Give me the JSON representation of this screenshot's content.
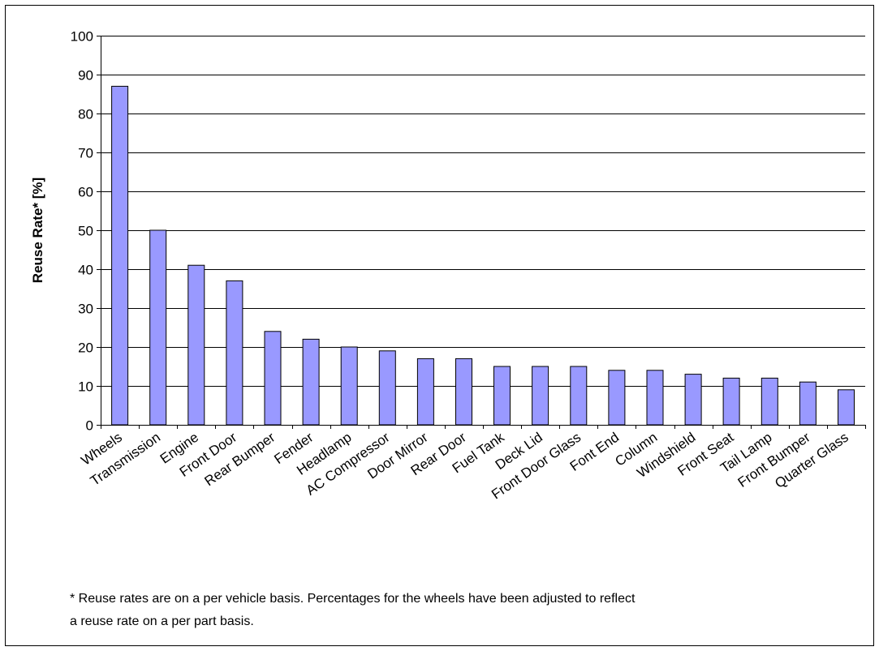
{
  "chart_data": {
    "type": "bar",
    "title": "",
    "xlabel": "",
    "ylabel": "Reuse Rate* [%]",
    "ylim": [
      0,
      100
    ],
    "yticks": [
      0,
      10,
      20,
      30,
      40,
      50,
      60,
      70,
      80,
      90,
      100
    ],
    "grid": true,
    "legend": "none",
    "categories": [
      "Wheels",
      "Transmission",
      "Engine",
      "Front Door",
      "Rear Bumper",
      "Fender",
      "Headlamp",
      "AC Compressor",
      "Door Mirror",
      "Rear Door",
      "Fuel Tank",
      "Deck Lid",
      "Front Door Glass",
      "Font End",
      "Column",
      "Windshield",
      "Front Seat",
      "Tail Lamp",
      "Front Bumper",
      "Quarter Glass"
    ],
    "values": [
      87,
      50,
      41,
      37,
      24,
      22,
      20,
      19,
      17,
      17,
      15,
      15,
      15,
      14,
      14,
      13,
      12,
      12,
      11,
      9
    ],
    "bar_color": "#9999ff"
  },
  "footnote": {
    "line1": "* Reuse rates are on a per vehicle basis. Percentages for the wheels have been adjusted to reflect",
    "line2": "a reuse rate on a per part basis."
  }
}
